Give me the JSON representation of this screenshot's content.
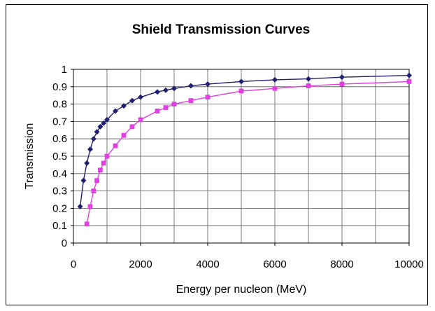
{
  "chart_data": {
    "type": "line",
    "title": "Shield Transmission Curves",
    "xlabel": "Energy per nucleon (MeV)",
    "ylabel": "Transmission",
    "xlim": [
      0,
      10000
    ],
    "ylim": [
      0,
      1
    ],
    "x_ticks": [
      "0",
      "2000",
      "4000",
      "6000",
      "8000",
      "10000"
    ],
    "y_ticks": [
      "0",
      "0.1",
      "0.2",
      "0.3",
      "0.4",
      "0.5",
      "0.6",
      "0.7",
      "0.8",
      "0.9",
      "1"
    ],
    "grid": true,
    "legend": false,
    "series": [
      {
        "color": "#1f1f6e",
        "marker": "diamond",
        "x": [
          200,
          300,
          400,
          500,
          600,
          700,
          800,
          900,
          1000,
          1250,
          1500,
          1750,
          2000,
          2500,
          2750,
          3000,
          3500,
          4000,
          5000,
          6000,
          7000,
          8000,
          10000
        ],
        "y": [
          0.21,
          0.36,
          0.46,
          0.54,
          0.6,
          0.64,
          0.67,
          0.69,
          0.71,
          0.76,
          0.79,
          0.82,
          0.84,
          0.87,
          0.88,
          0.89,
          0.905,
          0.915,
          0.93,
          0.94,
          0.945,
          0.955,
          0.965
        ]
      },
      {
        "color": "#e040e0",
        "marker": "square",
        "x": [
          400,
          500,
          600,
          700,
          800,
          900,
          1000,
          1250,
          1500,
          1750,
          2000,
          2500,
          2750,
          3000,
          3500,
          4000,
          5000,
          6000,
          7000,
          8000,
          10000
        ],
        "y": [
          0.11,
          0.21,
          0.3,
          0.36,
          0.42,
          0.46,
          0.5,
          0.56,
          0.62,
          0.67,
          0.71,
          0.76,
          0.78,
          0.8,
          0.82,
          0.84,
          0.875,
          0.89,
          0.905,
          0.915,
          0.93
        ]
      }
    ]
  }
}
